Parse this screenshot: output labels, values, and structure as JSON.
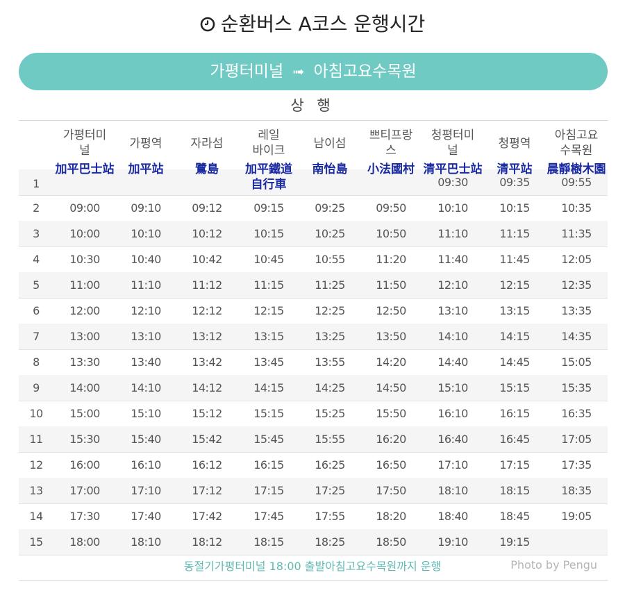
{
  "title": "순환버스 A코스 운행시간",
  "route_bar": {
    "from": "가평터미널",
    "arrow": "➟",
    "to": "아침고요수목원"
  },
  "direction": "상 행",
  "stops": [
    {
      "kr": "가평터미\n널",
      "cn": "加平巴士站"
    },
    {
      "kr": "가평역",
      "cn": "加平站"
    },
    {
      "kr": "자라섬",
      "cn": "鷺島"
    },
    {
      "kr": "레일\n바이크",
      "cn": "加平鐵道\n自行車"
    },
    {
      "kr": "남이섬",
      "cn": "南怡島"
    },
    {
      "kr": "쁘티프랑\n스",
      "cn": "小法國村"
    },
    {
      "kr": "청평터미\n널",
      "cn": "清平巴士站"
    },
    {
      "kr": "청평역",
      "cn": "清平站"
    },
    {
      "kr": "아침고요\n수목원",
      "cn": "晨靜樹木園"
    }
  ],
  "rows": [
    {
      "n": "1",
      "t": [
        "",
        "",
        "",
        "",
        "",
        "",
        "09:30",
        "09:35",
        "09:55"
      ]
    },
    {
      "n": "2",
      "t": [
        "09:00",
        "09:10",
        "09:12",
        "09:15",
        "09:25",
        "09:50",
        "10:10",
        "10:15",
        "10:35"
      ]
    },
    {
      "n": "3",
      "t": [
        "10:00",
        "10:10",
        "10:12",
        "10:15",
        "10:25",
        "10:50",
        "11:10",
        "11:15",
        "11:35"
      ]
    },
    {
      "n": "4",
      "t": [
        "10:30",
        "10:40",
        "10:42",
        "10:45",
        "10:55",
        "11:20",
        "11:40",
        "11:45",
        "12:05"
      ]
    },
    {
      "n": "5",
      "t": [
        "11:00",
        "11:10",
        "11:12",
        "11:15",
        "11:25",
        "11:50",
        "12:10",
        "12:15",
        "12:35"
      ]
    },
    {
      "n": "6",
      "t": [
        "12:00",
        "12:10",
        "12:12",
        "12:15",
        "12:25",
        "12:50",
        "13:10",
        "13:15",
        "13:35"
      ]
    },
    {
      "n": "7",
      "t": [
        "13:00",
        "13:10",
        "13:12",
        "13:15",
        "13:25",
        "13:50",
        "14:10",
        "14:15",
        "14:35"
      ]
    },
    {
      "n": "8",
      "t": [
        "13:30",
        "13:40",
        "13:42",
        "13:45",
        "13:55",
        "14:20",
        "14:40",
        "14:45",
        "15:05"
      ]
    },
    {
      "n": "9",
      "t": [
        "14:00",
        "14:10",
        "14:12",
        "14:15",
        "14:25",
        "14:50",
        "15:10",
        "15:15",
        "15:35"
      ]
    },
    {
      "n": "10",
      "t": [
        "15:00",
        "15:10",
        "15:12",
        "15:15",
        "15:25",
        "15:50",
        "16:10",
        "16:15",
        "16:35"
      ]
    },
    {
      "n": "11",
      "t": [
        "15:30",
        "15:40",
        "15:42",
        "15:45",
        "15:55",
        "16:20",
        "16:40",
        "16:45",
        "17:05"
      ]
    },
    {
      "n": "12",
      "t": [
        "16:00",
        "16:10",
        "16:12",
        "16:15",
        "16:25",
        "16:50",
        "17:10",
        "17:15",
        "17:35"
      ]
    },
    {
      "n": "13",
      "t": [
        "17:00",
        "17:10",
        "17:12",
        "17:15",
        "17:25",
        "17:50",
        "18:10",
        "18:15",
        "18:35"
      ]
    },
    {
      "n": "14",
      "t": [
        "17:30",
        "17:40",
        "17:42",
        "17:45",
        "17:55",
        "18:20",
        "18:40",
        "18:45",
        "19:05"
      ]
    },
    {
      "n": "15",
      "t": [
        "18:00",
        "18:10",
        "18:12",
        "18:15",
        "18:25",
        "18:50",
        "19:10",
        "19:15",
        ""
      ]
    }
  ],
  "footer_note": "동절기가평터미널 18:00 출발아침고요수목원까지 운행",
  "credit": "Photo by Pengu",
  "colors": {
    "accent": "#6ecac3",
    "chinese_text": "#1a2aa0",
    "note_text": "#5fb8b2"
  }
}
